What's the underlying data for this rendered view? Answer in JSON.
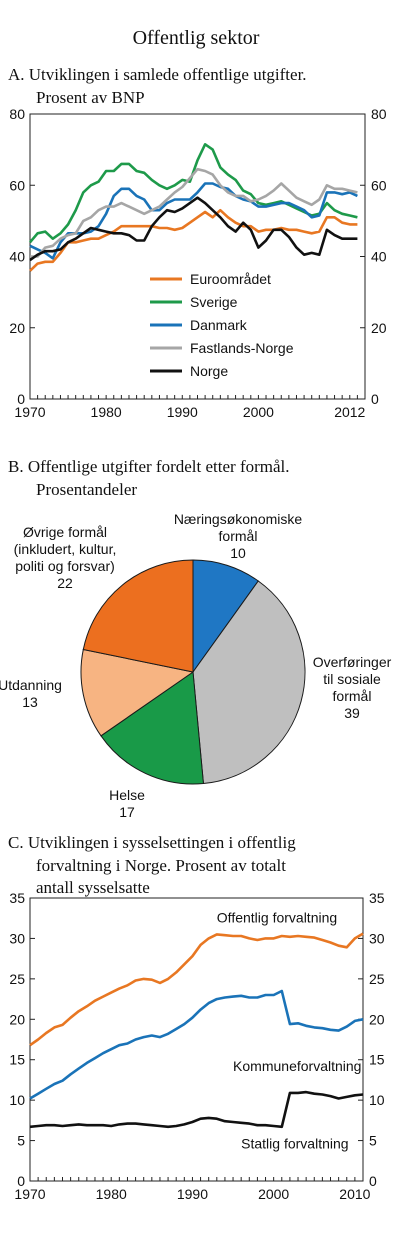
{
  "figure": {
    "title": "Offentlig sektor"
  },
  "chart_data": [
    {
      "id": "A",
      "type": "line",
      "title": "A.  Utviklingen i samlede offentlige utgifter.",
      "subtitle": "Prosent av BNP",
      "ylim": [
        0,
        80
      ],
      "yticks": [
        0,
        20,
        40,
        60,
        80
      ],
      "xlim": [
        1970,
        2014
      ],
      "xtick_labels": [
        {
          "v": 1970,
          "label": "1970"
        },
        {
          "v": 1980,
          "label": "1980"
        },
        {
          "v": 1990,
          "label": "1990"
        },
        {
          "v": 2000,
          "label": "2000"
        },
        {
          "v": 2012,
          "label": "2012"
        }
      ],
      "grid": false,
      "legend_position": "lower-center",
      "x": [
        1970,
        1971,
        1972,
        1973,
        1974,
        1975,
        1976,
        1977,
        1978,
        1979,
        1980,
        1981,
        1982,
        1983,
        1984,
        1985,
        1986,
        1987,
        1988,
        1989,
        1990,
        1991,
        1992,
        1993,
        1994,
        1995,
        1996,
        1997,
        1998,
        1999,
        2000,
        2001,
        2002,
        2003,
        2004,
        2005,
        2006,
        2007,
        2008,
        2009,
        2010,
        2011,
        2012,
        2013
      ],
      "series": [
        {
          "name": "Euroområdet",
          "color": "#e87722",
          "values": [
            36,
            38,
            38.5,
            38.5,
            41,
            44,
            44,
            44.5,
            45,
            45,
            46,
            47,
            48.5,
            48.5,
            48.5,
            48.5,
            48.5,
            48,
            48,
            47.5,
            48,
            49.5,
            51,
            52.5,
            51,
            53,
            51,
            49.5,
            48.5,
            48.5,
            47,
            47.5,
            47.5,
            48,
            47.5,
            47.5,
            47,
            46.5,
            47,
            51,
            51,
            49.5,
            49,
            49
          ]
        },
        {
          "name": "Sverige",
          "color": "#1e9a4a",
          "values": [
            44,
            46.5,
            47,
            45,
            46.5,
            49,
            53,
            58,
            60,
            61,
            64,
            64,
            66,
            66,
            64,
            63.5,
            61.5,
            60,
            59,
            60,
            61.5,
            61,
            67,
            71.5,
            70,
            65,
            63,
            61.5,
            58.5,
            57.5,
            55,
            54.5,
            55,
            55.5,
            54.5,
            53.5,
            52.5,
            51.5,
            52,
            55,
            53,
            52,
            51.5,
            51
          ]
        },
        {
          "name": "Danmark",
          "color": "#1a73b8",
          "values": [
            43,
            42,
            41,
            39.5,
            44,
            46.5,
            46.5,
            46.5,
            47,
            48.5,
            52,
            57,
            59,
            59,
            57,
            56,
            53,
            53,
            55,
            56,
            56,
            56,
            58,
            60.5,
            60.5,
            59.5,
            59,
            57,
            56,
            55.5,
            54,
            54,
            54.5,
            55,
            55,
            54,
            53,
            51,
            51.5,
            58,
            58,
            57.5,
            58,
            57
          ]
        },
        {
          "name": "Fastlands-Norge",
          "color": "#a6a6a6",
          "values": [
            40,
            40,
            42.5,
            43,
            45,
            46,
            46.5,
            50,
            51,
            53,
            54,
            54,
            55,
            54,
            53,
            52,
            53,
            54,
            56,
            58,
            59.5,
            62,
            64.5,
            64,
            63,
            60,
            58,
            57,
            57,
            55.5,
            56,
            57,
            58.5,
            60.5,
            58.5,
            56.5,
            55.5,
            54.5,
            56,
            60,
            59,
            59,
            58.5,
            58
          ]
        },
        {
          "name": "Norge",
          "color": "#111111",
          "values": [
            39,
            40.5,
            41.5,
            41.5,
            42,
            44,
            45,
            46.5,
            48,
            47.5,
            47,
            46.5,
            46.5,
            46,
            44.5,
            44.5,
            48.5,
            51,
            53,
            52.5,
            53.5,
            55,
            56.5,
            55,
            53,
            51,
            48.5,
            47,
            49.5,
            47.5,
            42.5,
            44.5,
            47.5,
            47.5,
            45.5,
            42.5,
            40.5,
            41,
            40.5,
            47.5,
            46,
            45,
            45,
            45
          ]
        }
      ]
    },
    {
      "id": "B",
      "type": "pie",
      "title": "B.  Offentlige utgifter fordelt etter formål.",
      "subtitle": "Prosentandeler",
      "slices": [
        {
          "label": [
            "Næringsøkonomiske",
            "formål"
          ],
          "value": 10,
          "value_text": "10",
          "color": "#1f77c4"
        },
        {
          "label": [
            "Overføringer",
            "til sosiale",
            "formål"
          ],
          "value": 39,
          "value_text": "39",
          "color": "#bfbfbf"
        },
        {
          "label": [
            "Helse"
          ],
          "value": 17,
          "value_text": "17",
          "color": "#199a48"
        },
        {
          "label": [
            "Utdanning"
          ],
          "value": 13,
          "value_text": "13",
          "color": "#f7b482"
        },
        {
          "label": [
            "Øvrige formål",
            "(inkludert, kultur,",
            "politi og forsvar)"
          ],
          "value": 22,
          "value_text": "22",
          "color": "#ec6f1f"
        }
      ]
    },
    {
      "id": "C",
      "type": "line",
      "title": "C.  Utviklingen i sysselsettingen i offentlig",
      "subtitle_lines": [
        "forvaltning i Norge. Prosent av totalt",
        "antall  sysselsatte"
      ],
      "ylim": [
        0,
        35
      ],
      "yticks": [
        0,
        5,
        10,
        15,
        20,
        25,
        30,
        35
      ],
      "xlim": [
        1970,
        2011
      ],
      "xtick_labels": [
        {
          "v": 1970,
          "label": "1970"
        },
        {
          "v": 1980,
          "label": "1980"
        },
        {
          "v": 1990,
          "label": "1990"
        },
        {
          "v": 2000,
          "label": "2000"
        },
        {
          "v": 2010,
          "label": "2010"
        }
      ],
      "grid": false,
      "x": [
        1970,
        1971,
        1972,
        1973,
        1974,
        1975,
        1976,
        1977,
        1978,
        1979,
        1980,
        1981,
        1982,
        1983,
        1984,
        1985,
        1986,
        1987,
        1988,
        1989,
        1990,
        1991,
        1992,
        1993,
        1994,
        1995,
        1996,
        1997,
        1998,
        1999,
        2000,
        2001,
        2002,
        2003,
        2004,
        2005,
        2006,
        2007,
        2008,
        2009,
        2010,
        2011
      ],
      "series": [
        {
          "name": "Offentlig forvaltning",
          "color": "#e87722",
          "label_anchor": [
            1993,
            32
          ],
          "values": [
            16.8,
            17.5,
            18.3,
            19,
            19.3,
            20.2,
            21,
            21.6,
            22.3,
            22.8,
            23.3,
            23.8,
            24.2,
            24.8,
            25,
            24.9,
            24.5,
            25,
            25.8,
            26.8,
            27.8,
            29.2,
            30,
            30.5,
            30.4,
            30.3,
            30.3,
            30,
            29.8,
            30,
            30,
            30.3,
            30.2,
            30.3,
            30.2,
            30.1,
            29.8,
            29.5,
            29.1,
            28.9,
            30,
            30.6
          ]
        },
        {
          "name": "Kommuneforvaltning",
          "color": "#1a73b8",
          "label_anchor": [
            1995,
            13.6
          ],
          "values": [
            10.2,
            10.8,
            11.4,
            12,
            12.4,
            13.2,
            13.9,
            14.6,
            15.2,
            15.8,
            16.3,
            16.8,
            17,
            17.5,
            17.8,
            18,
            17.8,
            18.2,
            18.8,
            19.4,
            20.2,
            21.2,
            22,
            22.5,
            22.7,
            22.8,
            22.9,
            22.7,
            22.7,
            23,
            23,
            23.5,
            19.4,
            19.5,
            19.2,
            19,
            18.9,
            18.7,
            18.6,
            19.1,
            19.8,
            20
          ]
        },
        {
          "name": "Statlig forvaltning",
          "color": "#111111",
          "label_anchor": [
            1996,
            4
          ],
          "values": [
            6.7,
            6.8,
            6.9,
            6.9,
            6.8,
            6.9,
            7,
            6.9,
            6.9,
            6.9,
            6.8,
            7,
            7.1,
            7.1,
            7,
            6.9,
            6.8,
            6.7,
            6.8,
            7,
            7.3,
            7.7,
            7.8,
            7.7,
            7.4,
            7.3,
            7.2,
            7.1,
            6.9,
            6.9,
            6.8,
            6.7,
            10.9,
            10.9,
            11,
            10.8,
            10.7,
            10.5,
            10.2,
            10.4,
            10.6,
            10.7
          ]
        }
      ]
    }
  ]
}
